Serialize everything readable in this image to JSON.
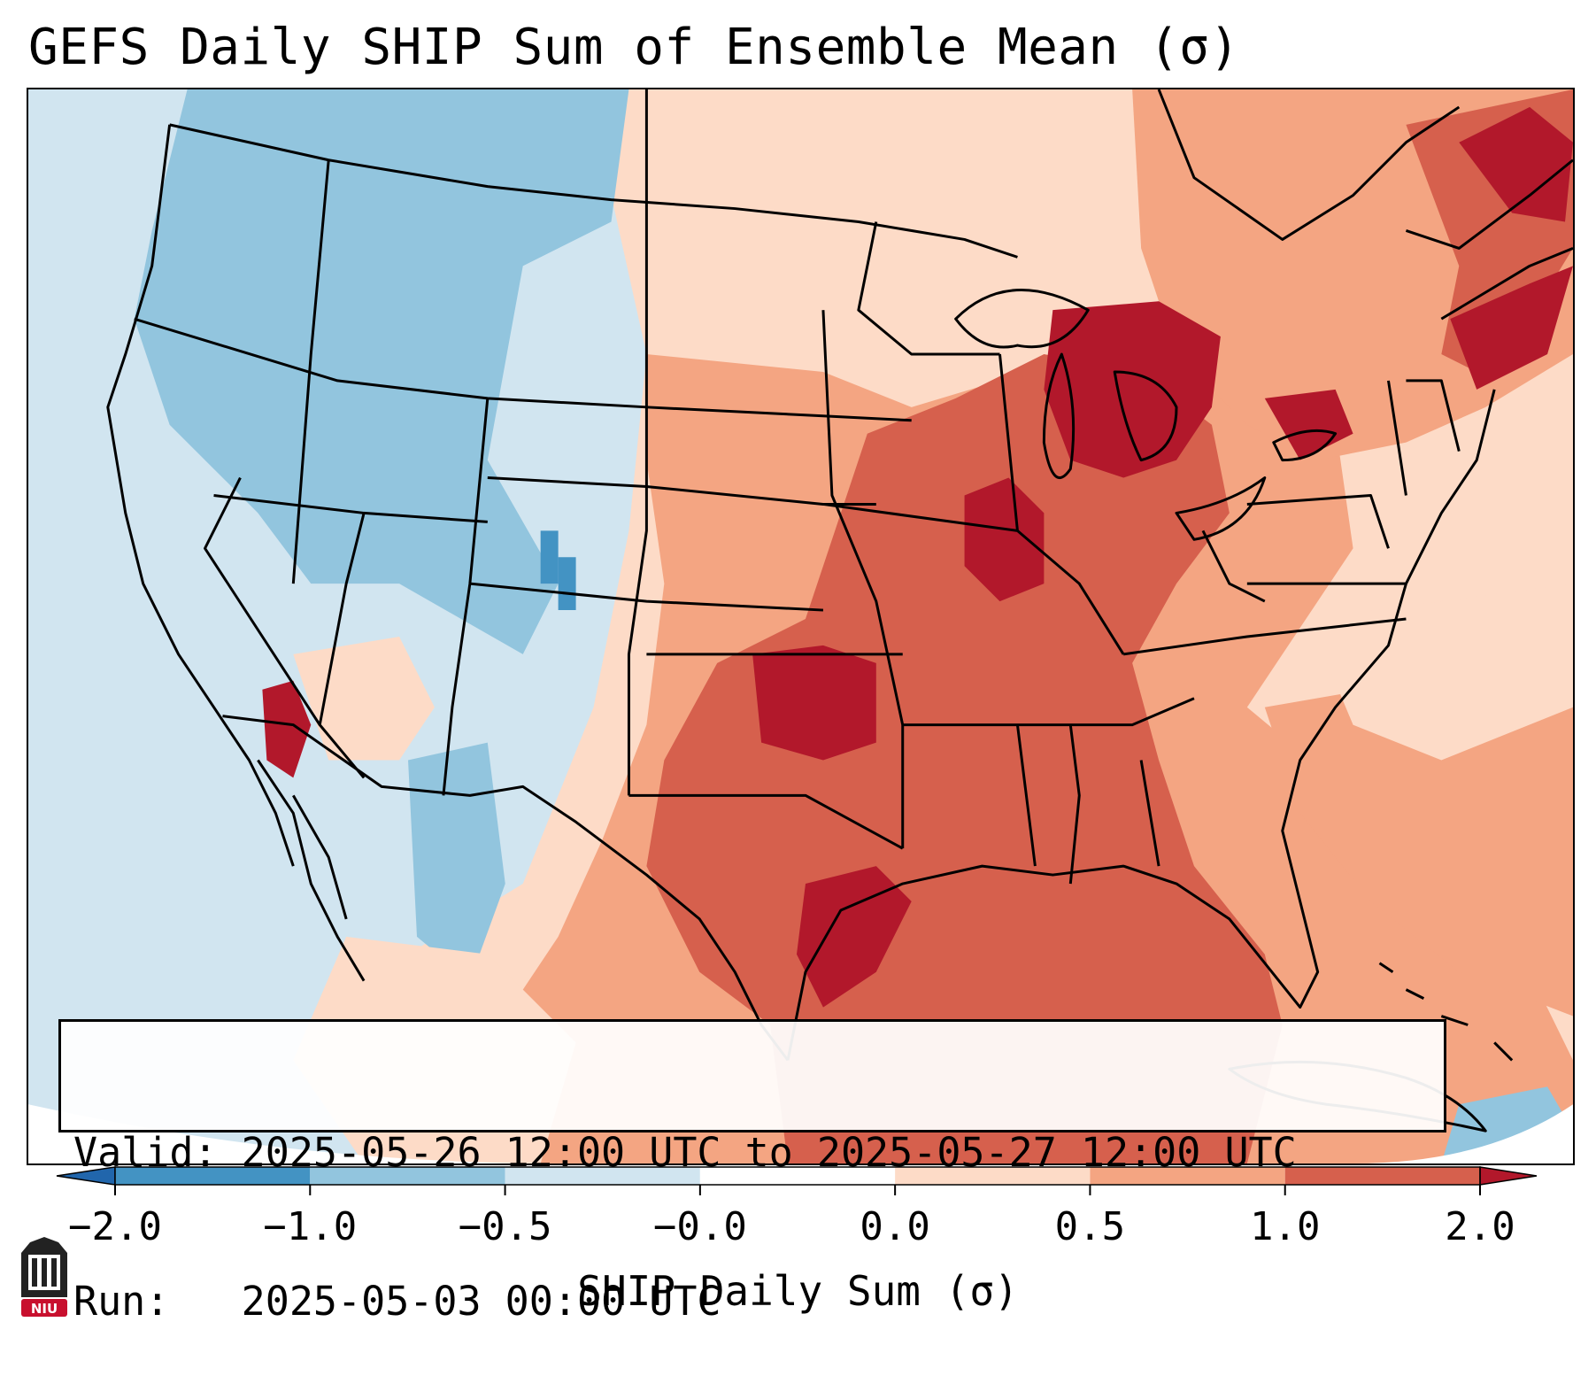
{
  "title": "GEFS Daily SHIP Sum of Ensemble Mean (σ)",
  "info": {
    "valid_label": "Valid:",
    "valid_value": "2025-05-26 12:00 UTC to 2025-05-27 12:00 UTC",
    "run_label": "Run:",
    "run_value": "2025-05-03 00:00 UTC"
  },
  "colorbar": {
    "label": "SHIP Daily Sum (σ)",
    "ticks": [
      "−2.0",
      "−1.0",
      "−0.5",
      "−0.0",
      "0.0",
      "0.5",
      "1.0",
      "2.0"
    ],
    "colors": [
      "#2166ac",
      "#4393c3",
      "#92c5de",
      "#d1e5f0",
      "#ffffff",
      "#fddbc7",
      "#f4a582",
      "#d6604d",
      "#b2182b"
    ],
    "extend": "both"
  },
  "logo": {
    "text": "NIU"
  }
}
